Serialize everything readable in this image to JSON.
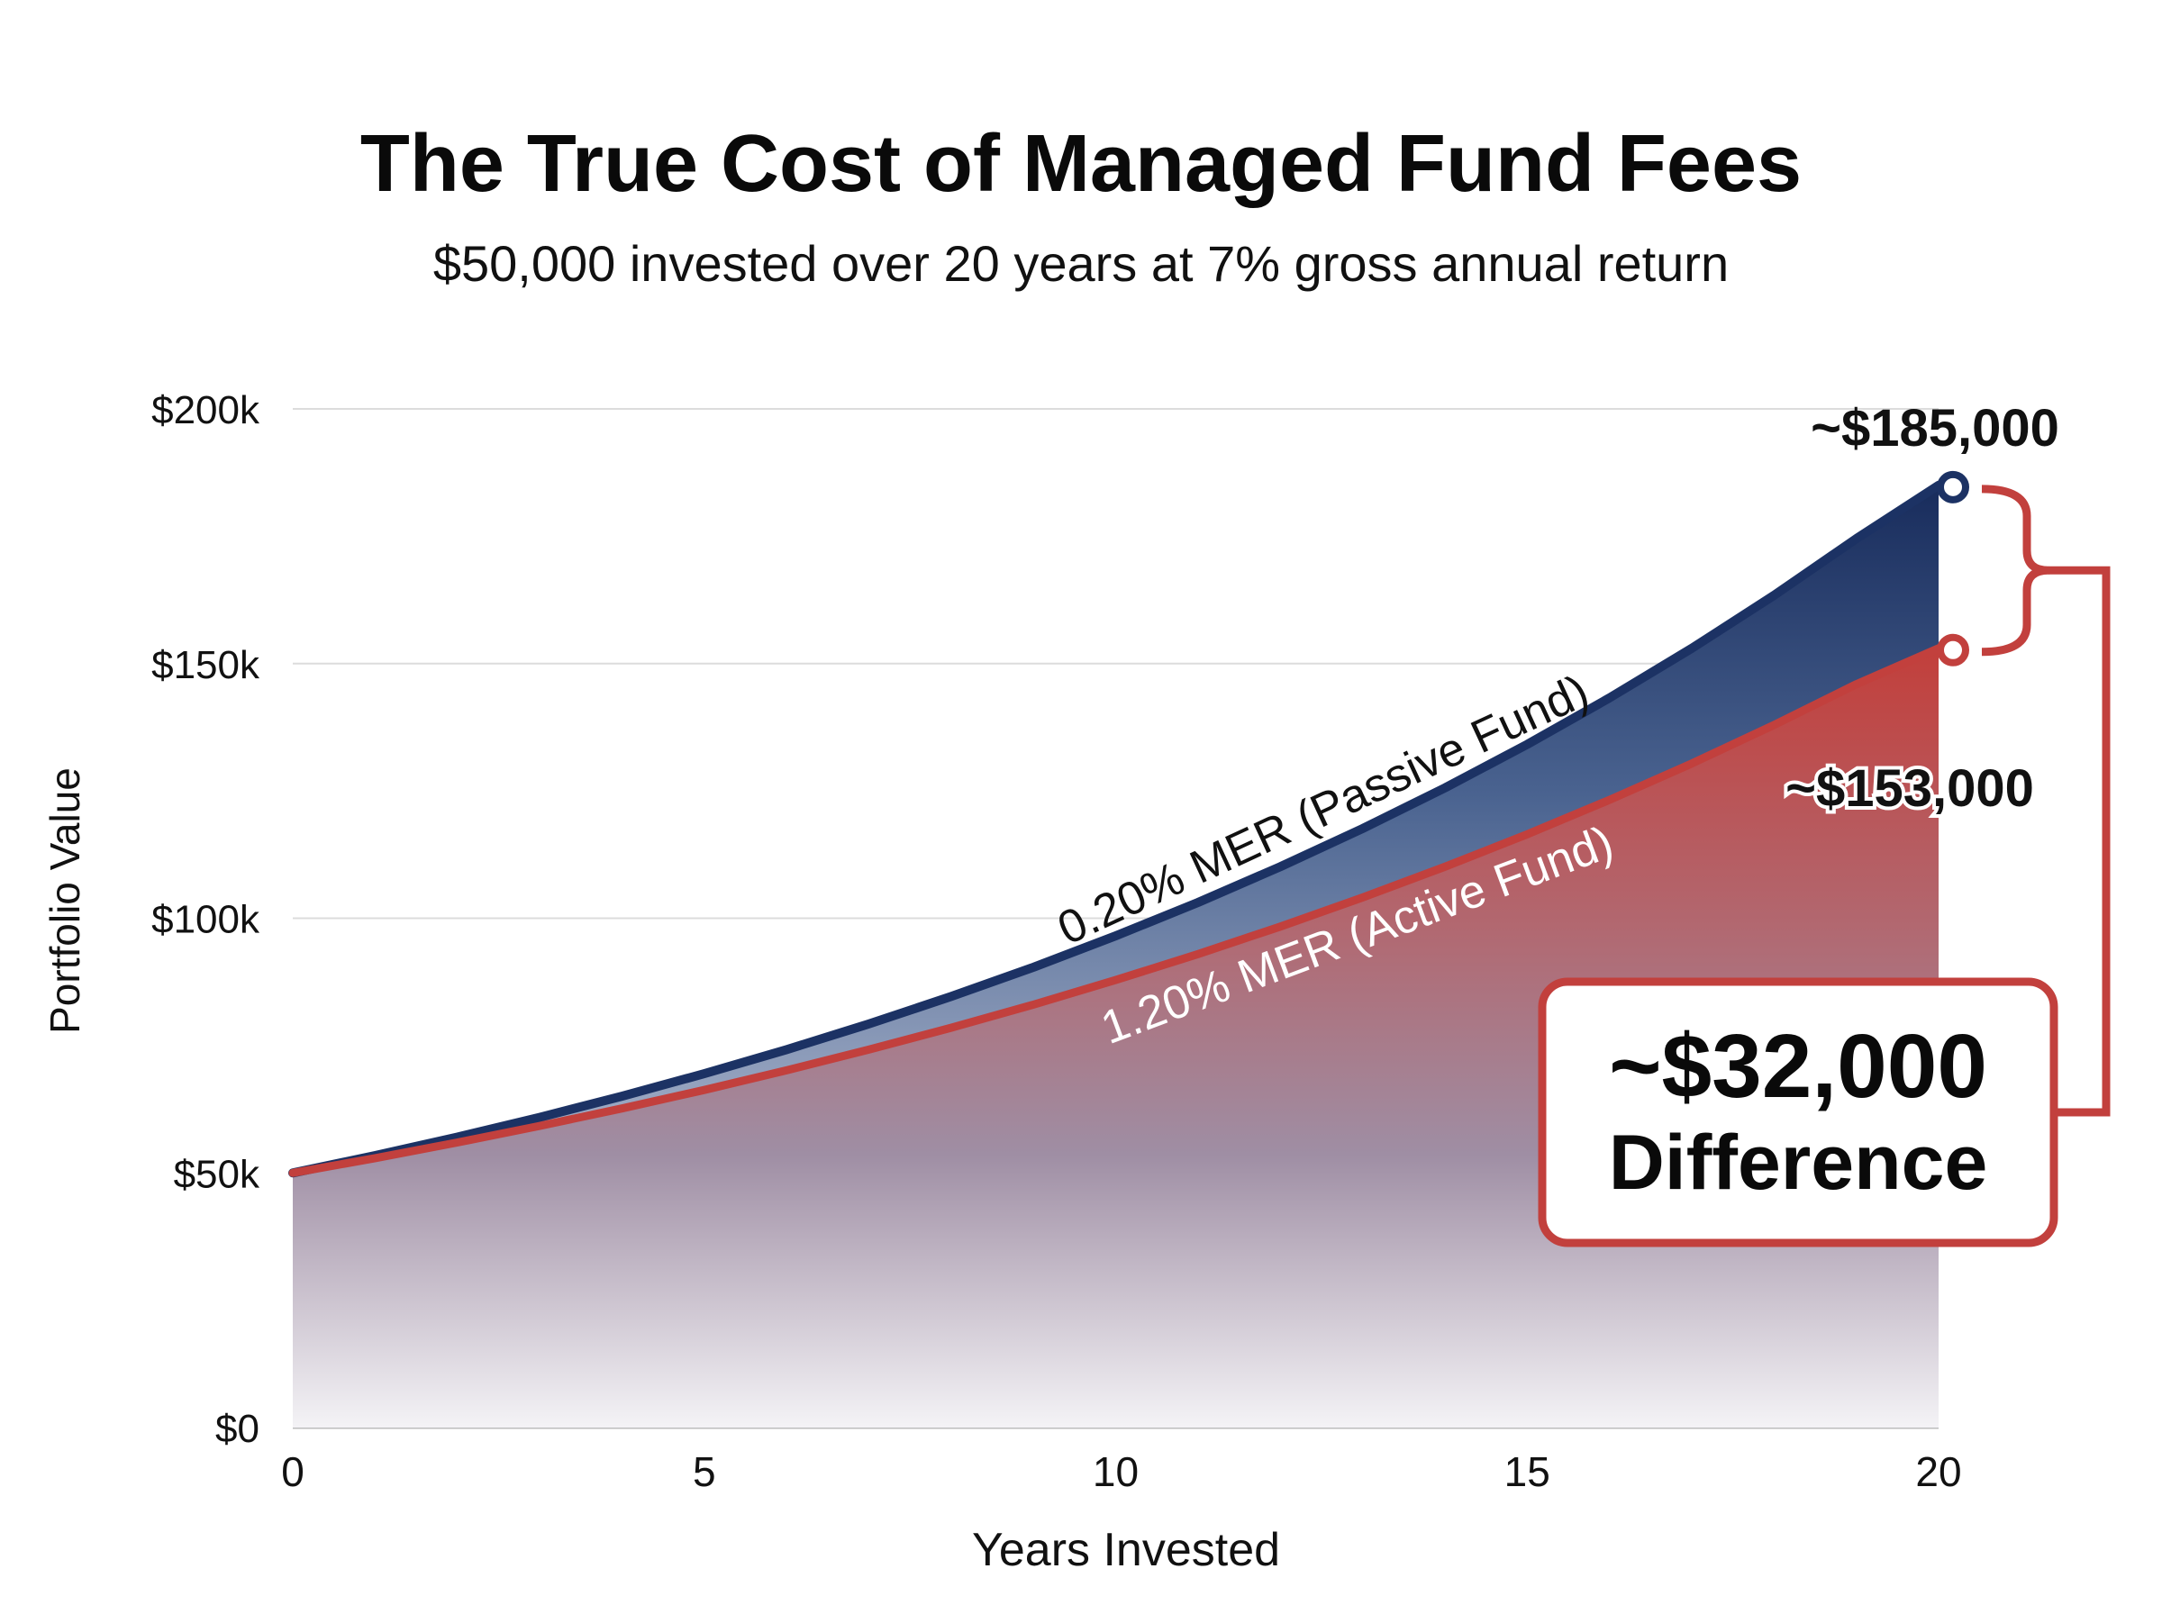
{
  "chart_data": {
    "type": "area",
    "title": "The True Cost of Managed Fund Fees",
    "subtitle": "$50,000 invested over 20 years at 7% gross annual return",
    "xlabel": "Years Invested",
    "ylabel": "Portfolio Value",
    "xlim": [
      0,
      20
    ],
    "ylim": [
      0,
      200000
    ],
    "x_ticks": [
      0,
      5,
      10,
      15,
      20
    ],
    "x_tick_labels": [
      "0",
      "5",
      "10",
      "15",
      "20"
    ],
    "y_ticks": [
      0,
      50000,
      100000,
      150000,
      200000
    ],
    "y_tick_labels": [
      "$0",
      "$50k",
      "$100k",
      "$150k",
      "$200k"
    ],
    "grid": true,
    "x": [
      0,
      1,
      2,
      3,
      4,
      5,
      6,
      7,
      8,
      9,
      10,
      11,
      12,
      13,
      14,
      15,
      16,
      17,
      18,
      19,
      20
    ],
    "series": [
      {
        "name": "0.20% MER (Passive Fund)",
        "color": "#1c3264",
        "values": [
          50000,
          53400,
          57031,
          60909,
          65051,
          69475,
          74199,
          79245,
          84633,
          90388,
          96535,
          103099,
          110110,
          117598,
          125594,
          134135,
          143256,
          152997,
          163401,
          174512,
          185000
        ]
      },
      {
        "name": "1.20% MER (Active Fund)",
        "color": "#c2403d",
        "values": [
          50000,
          52900,
          55968,
          59214,
          62649,
          66282,
          70127,
          74194,
          78497,
          83050,
          87867,
          92963,
          98355,
          104060,
          110095,
          116481,
          123237,
          130385,
          137947,
          145948,
          153000
        ]
      }
    ],
    "annotations": {
      "passive_end_label": "~$185,000",
      "active_end_label": "~$153,000",
      "difference_value": "~$32,000",
      "difference_label": "Difference"
    },
    "colors": {
      "passive": "#1c3264",
      "active": "#c2403d",
      "grid": "#dcdcdc",
      "callout_border": "#c2403d"
    }
  }
}
